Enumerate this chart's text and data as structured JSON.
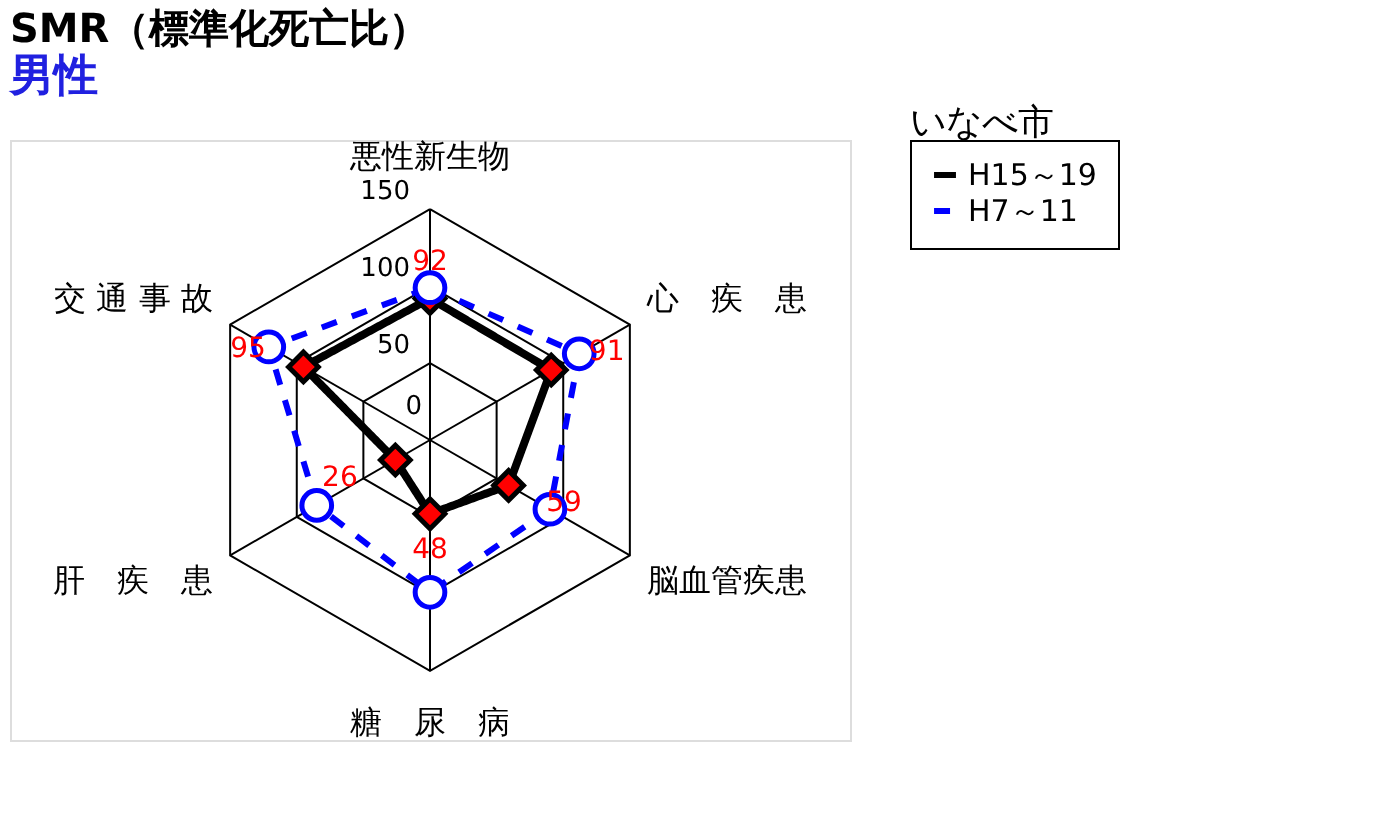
{
  "chart_data": {
    "type": "radar",
    "title": "SMR（標準化死亡比）",
    "subtitle": "男性",
    "annotations": [
      "いなべ市"
    ],
    "categories": [
      "悪性新生物",
      "心　疾　患",
      "脳血管疾患",
      "糖　尿　病",
      "肝　疾　患",
      "交 通 事 故"
    ],
    "ylim": [
      0,
      150
    ],
    "yticks": [
      0,
      50,
      100,
      150
    ],
    "grid": true,
    "legend": "right",
    "series": [
      {
        "name": "H15～19",
        "color": "#000000",
        "marker": "diamond",
        "line_style": "solid",
        "values": [
          92,
          91,
          59,
          48,
          26,
          95
        ],
        "value_labels": [
          "92",
          "91",
          "59",
          "48",
          "26",
          "95"
        ]
      },
      {
        "name": "H7～11",
        "color": "#0000ff",
        "marker": "circle",
        "line_style": "dashed",
        "values": [
          99,
          112,
          90,
          99,
          85,
          121
        ]
      }
    ]
  }
}
